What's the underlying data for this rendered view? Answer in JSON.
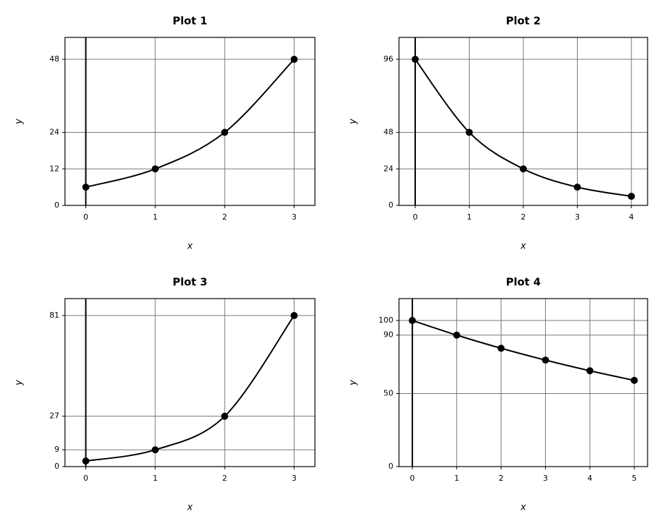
{
  "chart_data": [
    {
      "type": "line",
      "title": "Plot 1",
      "xlabel": "x",
      "ylabel": "y",
      "x": [
        0,
        1,
        2,
        3
      ],
      "values": [
        6,
        12,
        24,
        48
      ],
      "color": "#000000",
      "xlim": [
        -0.3,
        3.3
      ],
      "ylim": [
        0,
        55.2
      ],
      "xticks": [
        0,
        1,
        2,
        3
      ],
      "yticks": [
        0,
        12,
        24,
        48
      ],
      "grid": true,
      "vline": 0
    },
    {
      "type": "line",
      "title": "Plot 2",
      "xlabel": "x",
      "ylabel": "y",
      "x": [
        0,
        1,
        2,
        3,
        4
      ],
      "values": [
        96,
        48,
        24,
        12,
        6
      ],
      "color": "#000000",
      "xlim": [
        -0.3,
        4.3
      ],
      "ylim": [
        0,
        110.4
      ],
      "xticks": [
        0,
        1,
        2,
        3,
        4
      ],
      "yticks": [
        0,
        24,
        48,
        96
      ],
      "grid": true,
      "vline": 0
    },
    {
      "type": "line",
      "title": "Plot 3",
      "xlabel": "x",
      "ylabel": "y",
      "x": [
        0,
        1,
        2,
        3
      ],
      "values": [
        3,
        9,
        27,
        81
      ],
      "color": "#000000",
      "xlim": [
        -0.3,
        3.3
      ],
      "ylim": [
        0,
        90.1
      ],
      "xticks": [
        0,
        1,
        2,
        3
      ],
      "yticks": [
        0,
        9,
        27,
        81
      ],
      "grid": true,
      "vline": 0
    },
    {
      "type": "line",
      "title": "Plot 4",
      "xlabel": "x",
      "ylabel": "y",
      "x": [
        0,
        1,
        2,
        3,
        4,
        5
      ],
      "values": [
        100,
        90,
        81,
        72.9,
        65.6,
        59
      ],
      "color": "#000000",
      "xlim": [
        -0.3,
        5.3
      ],
      "ylim": [
        0,
        115
      ],
      "xticks": [
        0,
        1,
        2,
        3,
        4,
        5
      ],
      "yticks": [
        0,
        50,
        90,
        100
      ],
      "grid": true,
      "vline": 0
    }
  ]
}
